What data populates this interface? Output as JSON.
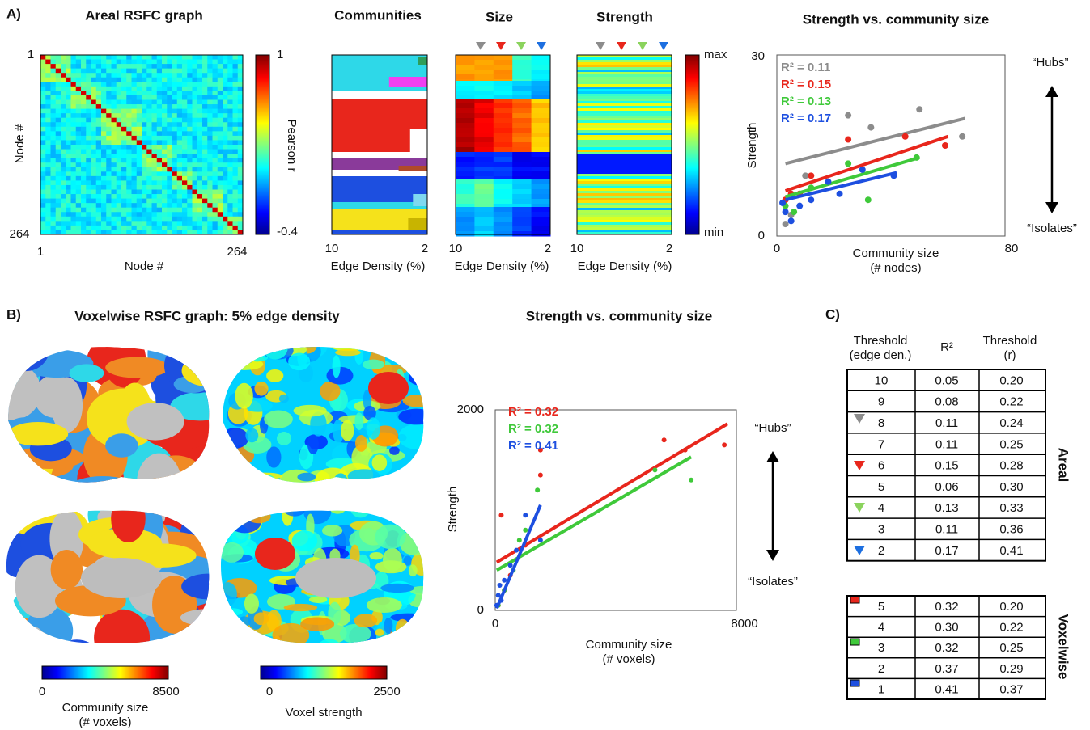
{
  "figure": {
    "panel_labels": [
      "A)",
      "B)",
      "C)"
    ],
    "matrix": {
      "title": "Areal RSFC graph",
      "y_label": "Node #",
      "x_label": "Node #",
      "xticks": [
        1,
        264
      ],
      "yticks": [
        1,
        264
      ],
      "colorbar_label": "Pearson r",
      "colorbar_ticks": [
        1,
        -0.4
      ]
    },
    "communities": {
      "title": "Communities",
      "x_label": "Edge Density (%)",
      "xticks": [
        10,
        2
      ]
    },
    "size": {
      "title": "Size",
      "x_label": "Edge Density (%)",
      "xticks": [
        10,
        2
      ]
    },
    "strength": {
      "title": "Strength",
      "x_label": "Edge Density (%)",
      "xticks": [
        10,
        2
      ],
      "colorbar_ticks": [
        "max",
        "min"
      ]
    },
    "brain": {
      "title": "Voxelwise RSFC graph: 5% edge density",
      "size_bar": {
        "ticks": [
          0,
          8500
        ],
        "label": [
          "Community size",
          "(# voxels)"
        ]
      },
      "strength_bar": {
        "ticks": [
          0,
          2500
        ],
        "label": "Voxel strength"
      }
    }
  },
  "chart_data": [
    {
      "type": "scatter",
      "title": "Strength vs. community size",
      "x_label": [
        "Community size",
        "(# nodes)"
      ],
      "y_label": "Strength",
      "xlim": [
        0,
        80
      ],
      "ylim": [
        0,
        30
      ],
      "xticks": [
        0,
        80
      ],
      "yticks": [
        0,
        30
      ],
      "annotations": [
        "“Hubs”",
        "“Isolates”"
      ],
      "series": [
        {
          "name": "R² = 0.11",
          "color": "#8c8c8c",
          "x": [
            3,
            5,
            10,
            25,
            33,
            50,
            65
          ],
          "values": [
            2,
            3.5,
            10,
            20,
            18,
            21,
            16.5
          ],
          "fit": {
            "x": [
              3,
              66
            ],
            "values": [
              12,
              19.5
            ]
          }
        },
        {
          "name": "R² = 0.15",
          "color": "#e8261c",
          "x": [
            3,
            5,
            8,
            12,
            25,
            45,
            59
          ],
          "values": [
            6,
            7,
            7,
            10,
            16,
            16.5,
            15
          ],
          "fit": {
            "x": [
              3,
              60
            ],
            "values": [
              7.5,
              16.5
            ]
          }
        },
        {
          "name": "R² = 0.13",
          "color": "#3fc93a",
          "x": [
            3,
            6,
            12,
            25,
            32,
            49
          ],
          "values": [
            5,
            4,
            8,
            12,
            6,
            13
          ],
          "fit": {
            "x": [
              3,
              50
            ],
            "values": [
              6.5,
              13
            ]
          }
        },
        {
          "name": "R² = 0.17",
          "color": "#1d4fe0",
          "x": [
            2,
            3,
            5,
            8,
            12,
            18,
            22,
            30,
            41
          ],
          "values": [
            5.5,
            4,
            2.5,
            5,
            6,
            9,
            7,
            11,
            10
          ],
          "fit": {
            "x": [
              3,
              42
            ],
            "values": [
              6,
              10.5
            ]
          }
        }
      ]
    },
    {
      "type": "scatter",
      "title": "Strength vs. community size",
      "x_label": [
        "Community size",
        "(# voxels)"
      ],
      "y_label": "Strength",
      "xlim": [
        0,
        8000
      ],
      "ylim": [
        0,
        2000
      ],
      "xticks": [
        0,
        8000
      ],
      "yticks": [
        0,
        2000
      ],
      "annotations": [
        "“Hubs”",
        "“Isolates”"
      ],
      "series": [
        {
          "name": "R² = 0.32",
          "color": "#e8261c",
          "x": [
            100,
            200,
            300,
            500,
            1000,
            1500,
            1500,
            5600,
            6300,
            7600
          ],
          "values": [
            50,
            950,
            200,
            350,
            650,
            1350,
            1600,
            1700,
            1600,
            1650
          ],
          "fit": {
            "x": [
              50,
              7700
            ],
            "values": [
              480,
              1860
            ]
          }
        },
        {
          "name": "R² = 0.32",
          "color": "#3fc93a",
          "x": [
            100,
            300,
            600,
            800,
            1000,
            1400,
            5300,
            6500
          ],
          "values": [
            50,
            200,
            400,
            700,
            800,
            1200,
            1400,
            1300
          ],
          "fit": {
            "x": [
              50,
              6500
            ],
            "values": [
              400,
              1530
            ]
          }
        },
        {
          "name": "R² = 0.41",
          "color": "#1d4fe0",
          "x": [
            50,
            100,
            150,
            200,
            300,
            500,
            700,
            1000,
            1500
          ],
          "values": [
            50,
            150,
            250,
            100,
            300,
            450,
            600,
            950,
            700
          ],
          "fit": {
            "x": [
              50,
              1500
            ],
            "values": [
              20,
              1050
            ]
          }
        }
      ]
    }
  ],
  "table": {
    "header": [
      [
        "Threshold",
        "(edge den.)"
      ],
      [
        "R²"
      ],
      [
        "Threshold",
        "(r)"
      ]
    ],
    "groups": [
      {
        "label": "Areal",
        "rows": [
          [
            "10",
            "0.05",
            "0.20"
          ],
          [
            "9",
            "0.08",
            "0.22"
          ],
          [
            "8",
            "0.11",
            "0.24"
          ],
          [
            "7",
            "0.11",
            "0.25"
          ],
          [
            "6",
            "0.15",
            "0.28"
          ],
          [
            "5",
            "0.06",
            "0.30"
          ],
          [
            "4",
            "0.13",
            "0.33"
          ],
          [
            "3",
            "0.11",
            "0.36"
          ],
          [
            "2",
            "0.17",
            "0.41"
          ]
        ]
      },
      {
        "label": "Voxelwise",
        "rows": [
          [
            "5",
            "0.32",
            "0.20"
          ],
          [
            "4",
            "0.30",
            "0.22"
          ],
          [
            "3",
            "0.32",
            "0.25"
          ],
          [
            "2",
            "0.37",
            "0.29"
          ],
          [
            "1",
            "0.41",
            "0.37"
          ]
        ]
      }
    ]
  }
}
